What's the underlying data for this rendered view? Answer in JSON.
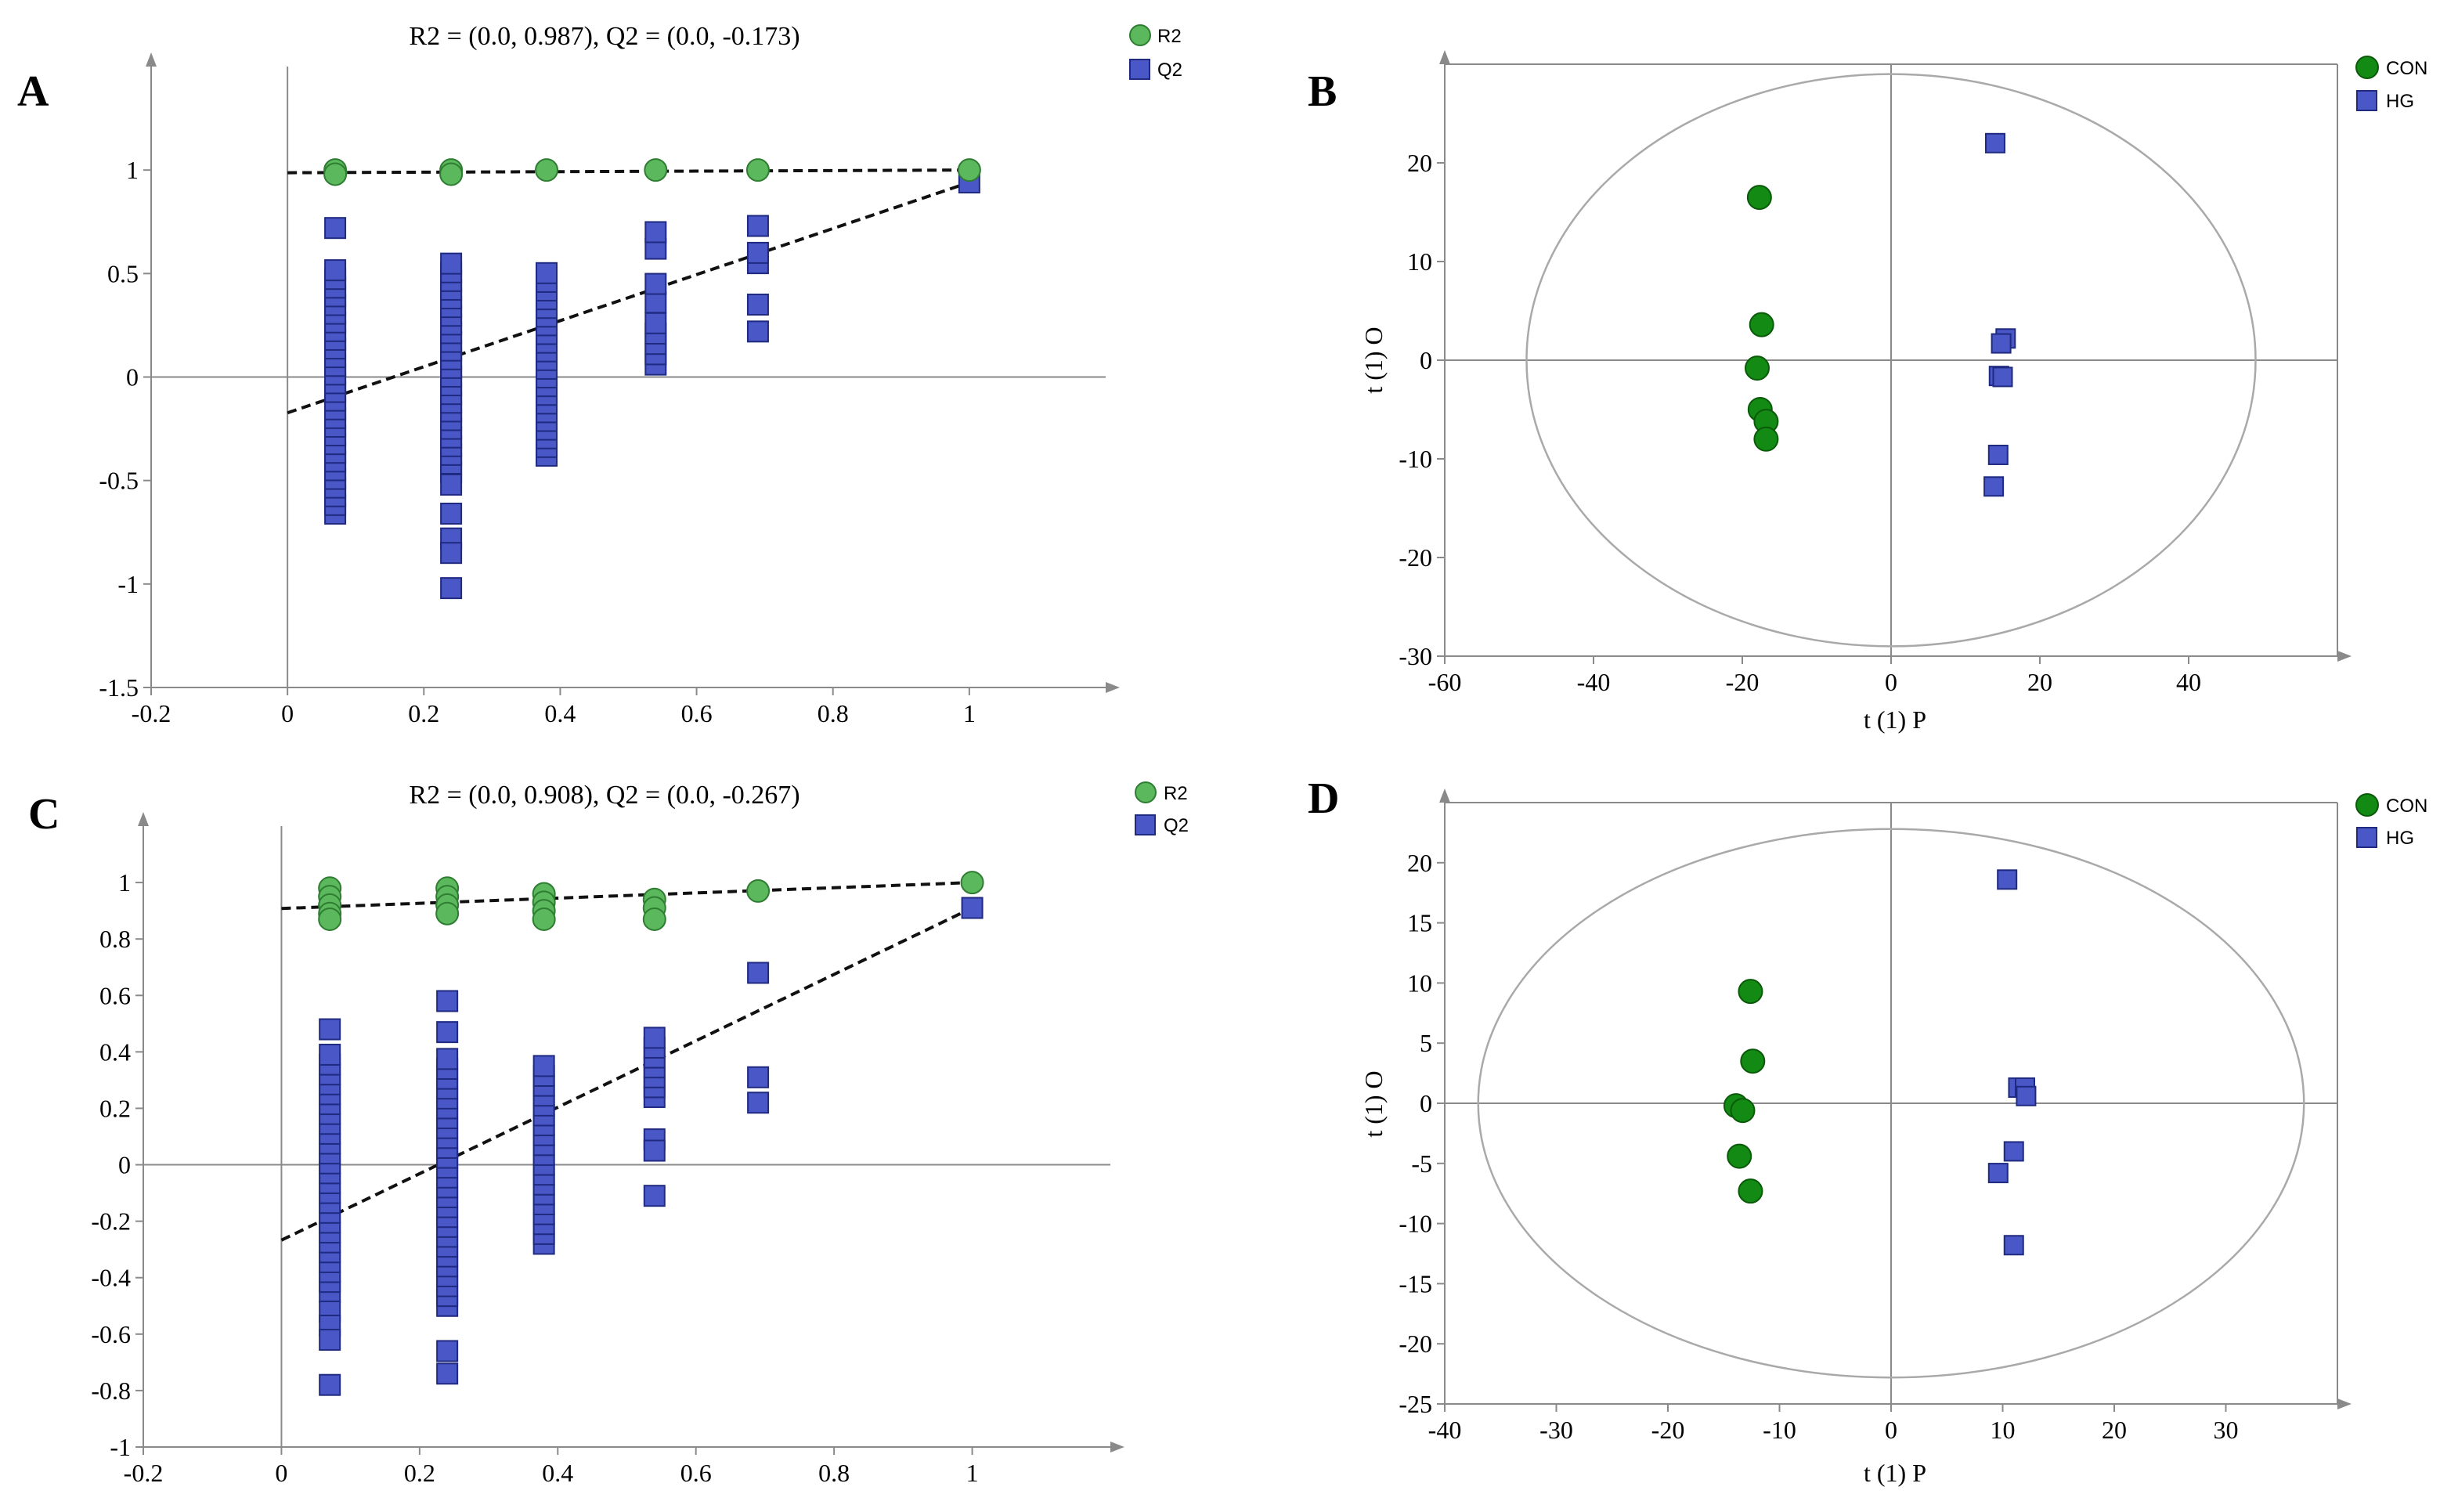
{
  "colors": {
    "r2_fill": "#5cb85c",
    "r2_stroke": "#2e7d32",
    "q2_fill": "#4a57c6",
    "q2_stroke": "#1f2a80",
    "con_fill": "#138a13",
    "con_stroke": "#0a5a0a",
    "hg_fill": "#4a57c6",
    "hg_stroke": "#1f2a80",
    "axis": "#8a8a8a",
    "ellipse": "#a9a9a9",
    "fit_line": "#111111"
  },
  "chart_data": [
    {
      "id": "A",
      "type": "scatter",
      "panel_label": "A",
      "title": "R2 = (0.0, 0.987), Q2 = (0.0, -0.173)",
      "xlabel": "",
      "ylabel": "",
      "xlim": [
        -0.2,
        1.2
      ],
      "ylim": [
        -1.5,
        1.5
      ],
      "xticks": [
        -0.2,
        0,
        0.2,
        0.4,
        0.6,
        0.8,
        1
      ],
      "xtick_labels": [
        "-0.2",
        "0",
        "0.2",
        "0.4",
        "0.6",
        "0.8",
        "1"
      ],
      "yticks": [
        -1.5,
        -1,
        -0.5,
        0,
        0.5,
        1
      ],
      "ytick_labels": [
        "-1.5",
        "-1",
        "-0.5",
        "0",
        "0.5",
        "1"
      ],
      "legend": {
        "position": "top-right",
        "entries": [
          "R2",
          "Q2"
        ]
      },
      "series": [
        {
          "name": "R2",
          "marker": "circle",
          "color_key": "r2",
          "points": [
            [
              0.07,
              1.0
            ],
            [
              0.07,
              0.98
            ],
            [
              0.24,
              1.0
            ],
            [
              0.24,
              0.98
            ],
            [
              0.38,
              1.0
            ],
            [
              0.54,
              1.0
            ],
            [
              0.69,
              1.0
            ],
            [
              1.0,
              1.0
            ]
          ]
        },
        {
          "name": "Q2",
          "marker": "square",
          "color_key": "q2",
          "points": [
            [
              1.0,
              0.94
            ]
          ],
          "columns": [
            {
              "x": 0.07,
              "min": -0.66,
              "max": 0.52,
              "step": 0.042,
              "extra": [
                0.72
              ]
            },
            {
              "x": 0.24,
              "min": -0.46,
              "max": 0.58,
              "step": 0.042,
              "extra": [
                -0.52,
                -0.66,
                -0.78,
                -0.85,
                -1.02
              ]
            },
            {
              "x": 0.38,
              "min": -0.38,
              "max": 0.52,
              "step": 0.042,
              "extra": []
            },
            {
              "x": 0.54,
              "min": 0.06,
              "max": 0.26,
              "step": 0.05,
              "extra": [
                0.36,
                0.45,
                0.62,
                0.7
              ]
            },
            {
              "x": 0.69,
              "min": 0.22,
              "max": 0.22,
              "step": 1,
              "extra": [
                0.35,
                0.55,
                0.6,
                0.73
              ]
            }
          ]
        }
      ],
      "fit_lines": [
        {
          "name": "R2 fit",
          "x": [
            0,
            1
          ],
          "y": [
            0.987,
            1.0
          ]
        },
        {
          "name": "Q2 fit",
          "x": [
            0,
            1
          ],
          "y": [
            -0.173,
            0.94
          ]
        }
      ]
    },
    {
      "id": "B",
      "type": "scatter",
      "panel_label": "B",
      "title": "",
      "xlabel": "t (1) P",
      "ylabel": "t (1) O",
      "xlim": [
        -60,
        60
      ],
      "ylim": [
        -30,
        30
      ],
      "xticks": [
        -60,
        -40,
        -20,
        0,
        20,
        40
      ],
      "xtick_labels": [
        "-60",
        "-40",
        "-20",
        "0",
        "20",
        "40"
      ],
      "yticks": [
        -30,
        -20,
        -10,
        0,
        10,
        20
      ],
      "ytick_labels": [
        "-30",
        "-20",
        "-10",
        "0",
        "10",
        "20"
      ],
      "legend": {
        "position": "top-right",
        "entries": [
          "CON",
          "HG"
        ]
      },
      "ellipse": {
        "cx": 0,
        "cy": 0,
        "rx": 49,
        "ry": 29
      },
      "series": [
        {
          "name": "CON",
          "marker": "circle",
          "color_key": "con",
          "points": [
            [
              -17.7,
              16.5
            ],
            [
              -17.4,
              3.6
            ],
            [
              -18,
              -0.8
            ],
            [
              -17.6,
              -5
            ],
            [
              -16.8,
              -6.2
            ],
            [
              -16.8,
              -8
            ]
          ]
        },
        {
          "name": "HG",
          "marker": "square",
          "color_key": "hg",
          "points": [
            [
              14,
              22
            ],
            [
              15.4,
              2.2
            ],
            [
              14.8,
              1.7
            ],
            [
              14.5,
              -1.6
            ],
            [
              15,
              -1.7
            ],
            [
              14.4,
              -9.6
            ],
            [
              13.8,
              -12.8
            ]
          ]
        }
      ]
    },
    {
      "id": "C",
      "type": "scatter",
      "panel_label": "C",
      "title": "R2 = (0.0, 0.908), Q2 = (0.0, -0.267)",
      "xlabel": "",
      "ylabel": "",
      "xlim": [
        -0.2,
        1.2
      ],
      "ylim": [
        -1,
        1.2
      ],
      "xticks": [
        -0.2,
        0,
        0.2,
        0.4,
        0.6,
        0.8,
        1
      ],
      "xtick_labels": [
        "-0.2",
        "0",
        "0.2",
        "0.4",
        "0.6",
        "0.8",
        "1"
      ],
      "yticks": [
        -1,
        -0.8,
        -0.6,
        -0.4,
        -0.2,
        0,
        0.2,
        0.4,
        0.6,
        0.8,
        1
      ],
      "ytick_labels": [
        "-1",
        "-0.8",
        "-0.6",
        "-0.4",
        "-0.2",
        "0",
        "0.2",
        "0.4",
        "0.6",
        "0.8",
        "1"
      ],
      "legend": {
        "position": "top-right",
        "entries": [
          "R2",
          "Q2"
        ]
      },
      "series": [
        {
          "name": "R2",
          "marker": "circle",
          "color_key": "r2",
          "points": [
            [
              0.07,
              0.98
            ],
            [
              0.07,
              0.95
            ],
            [
              0.07,
              0.92
            ],
            [
              0.07,
              0.89
            ],
            [
              0.07,
              0.87
            ],
            [
              0.24,
              0.98
            ],
            [
              0.24,
              0.95
            ],
            [
              0.24,
              0.92
            ],
            [
              0.24,
              0.89
            ],
            [
              0.38,
              0.96
            ],
            [
              0.38,
              0.93
            ],
            [
              0.38,
              0.9
            ],
            [
              0.38,
              0.87
            ],
            [
              0.54,
              0.94
            ],
            [
              0.54,
              0.91
            ],
            [
              0.54,
              0.87
            ],
            [
              0.69,
              0.97
            ],
            [
              1.0,
              1.0
            ]
          ]
        },
        {
          "name": "Q2",
          "marker": "square",
          "color_key": "q2",
          "points": [
            [
              1.0,
              0.91
            ]
          ],
          "columns": [
            {
              "x": 0.07,
              "min": -0.45,
              "max": 0.4,
              "step": 0.035,
              "extra": [
                0.48,
                -0.52,
                -0.57,
                -0.62,
                -0.78
              ]
            },
            {
              "x": 0.24,
              "min": -0.5,
              "max": 0.38,
              "step": 0.035,
              "extra": [
                0.47,
                0.58,
                -0.66,
                -0.74
              ]
            },
            {
              "x": 0.38,
              "min": -0.28,
              "max": 0.36,
              "step": 0.035,
              "extra": []
            },
            {
              "x": 0.54,
              "min": 0.24,
              "max": 0.47,
              "step": 0.035,
              "extra": [
                0.09,
                0.05,
                -0.11
              ]
            },
            {
              "x": 0.69,
              "min": 0.22,
              "max": 0.22,
              "step": 1,
              "extra": [
                0.31,
                0.68
              ]
            }
          ]
        }
      ],
      "fit_lines": [
        {
          "name": "R2 fit",
          "x": [
            0,
            1
          ],
          "y": [
            0.908,
            1.0
          ]
        },
        {
          "name": "Q2 fit",
          "x": [
            0,
            1
          ],
          "y": [
            -0.267,
            0.91
          ]
        }
      ]
    },
    {
      "id": "D",
      "type": "scatter",
      "panel_label": "D",
      "title": "",
      "xlabel": "t (1) P",
      "ylabel": "t (1) O",
      "xlim": [
        -40,
        40
      ],
      "ylim": [
        -25,
        25
      ],
      "xticks": [
        -40,
        -30,
        -20,
        -10,
        0,
        10,
        20,
        30
      ],
      "xtick_labels": [
        "-40",
        "-30",
        "-20",
        "-10",
        "0",
        "10",
        "20",
        "30"
      ],
      "yticks": [
        -25,
        -20,
        -15,
        -10,
        -5,
        0,
        5,
        10,
        15,
        20
      ],
      "ytick_labels": [
        "-25",
        "-20",
        "-15",
        "-10",
        "-5",
        "0",
        "5",
        "10",
        "15",
        "20"
      ],
      "legend": {
        "position": "top-right",
        "entries": [
          "CON",
          "HG"
        ]
      },
      "ellipse": {
        "cx": 0,
        "cy": 0,
        "rx": 37,
        "ry": 22.8
      },
      "series": [
        {
          "name": "CON",
          "marker": "circle",
          "color_key": "con",
          "points": [
            [
              -12.6,
              9.3
            ],
            [
              -12.4,
              3.5
            ],
            [
              -13.9,
              -0.2
            ],
            [
              -13.3,
              -0.6
            ],
            [
              -13.6,
              -4.4
            ],
            [
              -12.6,
              -7.3
            ]
          ]
        },
        {
          "name": "HG",
          "marker": "square",
          "color_key": "hg",
          "points": [
            [
              10.4,
              18.6
            ],
            [
              11.4,
              1.3
            ],
            [
              12,
              1.3
            ],
            [
              12.1,
              0.6
            ],
            [
              11,
              -4
            ],
            [
              9.6,
              -5.8
            ],
            [
              11,
              -11.8
            ]
          ]
        }
      ]
    }
  ]
}
